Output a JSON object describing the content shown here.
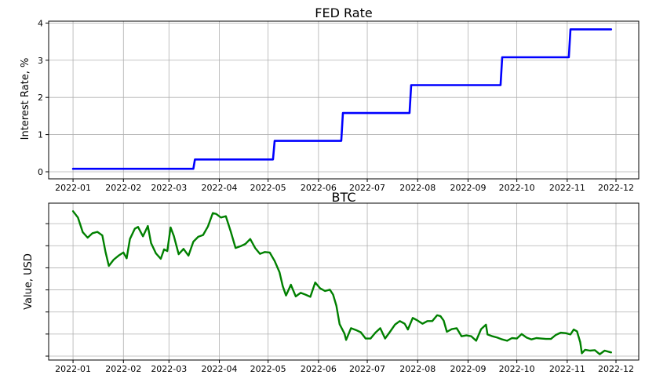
{
  "chart_data": [
    {
      "type": "line",
      "title": "FED Rate",
      "xlabel": "",
      "ylabel": "Interest Rate, %",
      "x_tick_labels": [
        "2022-01",
        "2022-02",
        "2022-03",
        "2022-04",
        "2022-05",
        "2022-06",
        "2022-07",
        "2022-08",
        "2022-09",
        "2022-10",
        "2022-11",
        "2022-12"
      ],
      "y_ticks": [
        0,
        1,
        2,
        3,
        4
      ],
      "xlim": [
        "2021-12-17",
        "2022-12-15"
      ],
      "ylim": [
        -0.19,
        4.05
      ],
      "grid": true,
      "series": [
        {
          "color": "#0000ff",
          "points": [
            [
              "2022-01-01",
              0.08
            ],
            [
              "2022-03-16",
              0.08
            ],
            [
              "2022-03-17",
              0.33
            ],
            [
              "2022-05-04",
              0.33
            ],
            [
              "2022-05-05",
              0.83
            ],
            [
              "2022-06-15",
              0.83
            ],
            [
              "2022-06-16",
              1.58
            ],
            [
              "2022-07-27",
              1.58
            ],
            [
              "2022-07-28",
              2.33
            ],
            [
              "2022-09-21",
              2.33
            ],
            [
              "2022-09-22",
              3.08
            ],
            [
              "2022-11-02",
              3.08
            ],
            [
              "2022-11-03",
              3.83
            ],
            [
              "2022-11-28",
              3.83
            ]
          ]
        }
      ]
    },
    {
      "type": "line",
      "title": "BTC",
      "xlabel": "",
      "ylabel": "Value, USD",
      "x_tick_labels": [
        "2022-01",
        "2022-02",
        "2022-03",
        "2022-04",
        "2022-05",
        "2022-06",
        "2022-07",
        "2022-08",
        "2022-09",
        "2022-10",
        "2022-11",
        "2022-12"
      ],
      "y_tick_labels": [
        "",
        "",
        "",
        "",
        "",
        "",
        ""
      ],
      "xlim": [
        "2021-12-17",
        "2022-12-15"
      ],
      "ylim": [
        14500,
        49500
      ],
      "grid": true,
      "series": [
        {
          "color": "#008000",
          "points": [
            [
              "2022-01-01",
              47700
            ],
            [
              "2022-01-04",
              46300
            ],
            [
              "2022-01-07",
              43000
            ],
            [
              "2022-01-10",
              41800
            ],
            [
              "2022-01-13",
              42800
            ],
            [
              "2022-01-16",
              43100
            ],
            [
              "2022-01-19",
              42300
            ],
            [
              "2022-01-21",
              38600
            ],
            [
              "2022-01-23",
              35500
            ],
            [
              "2022-01-26",
              36900
            ],
            [
              "2022-01-29",
              37800
            ],
            [
              "2022-02-01",
              38500
            ],
            [
              "2022-02-03",
              37200
            ],
            [
              "2022-02-05",
              41500
            ],
            [
              "2022-02-08",
              43800
            ],
            [
              "2022-02-10",
              44200
            ],
            [
              "2022-02-13",
              42100
            ],
            [
              "2022-02-16",
              44400
            ],
            [
              "2022-02-18",
              40600
            ],
            [
              "2022-02-21",
              38300
            ],
            [
              "2022-02-24",
              37100
            ],
            [
              "2022-02-26",
              39200
            ],
            [
              "2022-02-28",
              38800
            ],
            [
              "2022-03-02",
              44100
            ],
            [
              "2022-03-04",
              42200
            ],
            [
              "2022-03-07",
              38100
            ],
            [
              "2022-03-10",
              39300
            ],
            [
              "2022-03-13",
              37800
            ],
            [
              "2022-03-16",
              40900
            ],
            [
              "2022-03-19",
              42000
            ],
            [
              "2022-03-22",
              42400
            ],
            [
              "2022-03-25",
              44300
            ],
            [
              "2022-03-28",
              47300
            ],
            [
              "2022-03-30",
              47100
            ],
            [
              "2022-04-02",
              46300
            ],
            [
              "2022-04-05",
              46600
            ],
            [
              "2022-04-08",
              43200
            ],
            [
              "2022-04-11",
              39500
            ],
            [
              "2022-04-14",
              39900
            ],
            [
              "2022-04-17",
              40400
            ],
            [
              "2022-04-20",
              41500
            ],
            [
              "2022-04-23",
              39500
            ],
            [
              "2022-04-26",
              38200
            ],
            [
              "2022-04-29",
              38600
            ],
            [
              "2022-05-02",
              38500
            ],
            [
              "2022-05-05",
              36600
            ],
            [
              "2022-05-08",
              34100
            ],
            [
              "2022-05-10",
              31000
            ],
            [
              "2022-05-12",
              28900
            ],
            [
              "2022-05-15",
              31300
            ],
            [
              "2022-05-18",
              28700
            ],
            [
              "2022-05-21",
              29500
            ],
            [
              "2022-05-24",
              29100
            ],
            [
              "2022-05-27",
              28600
            ],
            [
              "2022-05-30",
              31800
            ],
            [
              "2022-06-02",
              30500
            ],
            [
              "2022-06-05",
              29900
            ],
            [
              "2022-06-08",
              30200
            ],
            [
              "2022-06-10",
              29100
            ],
            [
              "2022-06-12",
              26600
            ],
            [
              "2022-06-14",
              22500
            ],
            [
              "2022-06-17",
              20400
            ],
            [
              "2022-06-18",
              19000
            ],
            [
              "2022-06-21",
              21600
            ],
            [
              "2022-06-24",
              21200
            ],
            [
              "2022-06-27",
              20700
            ],
            [
              "2022-06-30",
              19300
            ],
            [
              "2022-07-03",
              19300
            ],
            [
              "2022-07-06",
              20600
            ],
            [
              "2022-07-09",
              21600
            ],
            [
              "2022-07-12",
              19300
            ],
            [
              "2022-07-15",
              20800
            ],
            [
              "2022-07-18",
              22400
            ],
            [
              "2022-07-21",
              23200
            ],
            [
              "2022-07-24",
              22600
            ],
            [
              "2022-07-26",
              21300
            ],
            [
              "2022-07-29",
              23900
            ],
            [
              "2022-08-01",
              23300
            ],
            [
              "2022-08-04",
              22600
            ],
            [
              "2022-08-07",
              23200
            ],
            [
              "2022-08-10",
              23200
            ],
            [
              "2022-08-13",
              24500
            ],
            [
              "2022-08-15",
              24300
            ],
            [
              "2022-08-17",
              23300
            ],
            [
              "2022-08-19",
              20800
            ],
            [
              "2022-08-22",
              21400
            ],
            [
              "2022-08-25",
              21600
            ],
            [
              "2022-08-28",
              19800
            ],
            [
              "2022-08-31",
              20000
            ],
            [
              "2022-09-03",
              19800
            ],
            [
              "2022-09-06",
              18800
            ],
            [
              "2022-09-09",
              21400
            ],
            [
              "2022-09-12",
              22400
            ],
            [
              "2022-09-13",
              20200
            ],
            [
              "2022-09-16",
              19800
            ],
            [
              "2022-09-19",
              19500
            ],
            [
              "2022-09-22",
              19100
            ],
            [
              "2022-09-25",
              18800
            ],
            [
              "2022-09-28",
              19400
            ],
            [
              "2022-10-01",
              19300
            ],
            [
              "2022-10-04",
              20300
            ],
            [
              "2022-10-07",
              19500
            ],
            [
              "2022-10-10",
              19100
            ],
            [
              "2022-10-13",
              19400
            ],
            [
              "2022-10-16",
              19300
            ],
            [
              "2022-10-19",
              19200
            ],
            [
              "2022-10-22",
              19200
            ],
            [
              "2022-10-25",
              20100
            ],
            [
              "2022-10-28",
              20600
            ],
            [
              "2022-10-31",
              20500
            ],
            [
              "2022-11-03",
              20200
            ],
            [
              "2022-11-05",
              21300
            ],
            [
              "2022-11-07",
              20900
            ],
            [
              "2022-11-09",
              18500
            ],
            [
              "2022-11-10",
              16000
            ],
            [
              "2022-11-12",
              16800
            ],
            [
              "2022-11-15",
              16600
            ],
            [
              "2022-11-18",
              16700
            ],
            [
              "2022-11-21",
              15800
            ],
            [
              "2022-11-24",
              16600
            ],
            [
              "2022-11-28",
              16200
            ]
          ]
        }
      ]
    }
  ]
}
